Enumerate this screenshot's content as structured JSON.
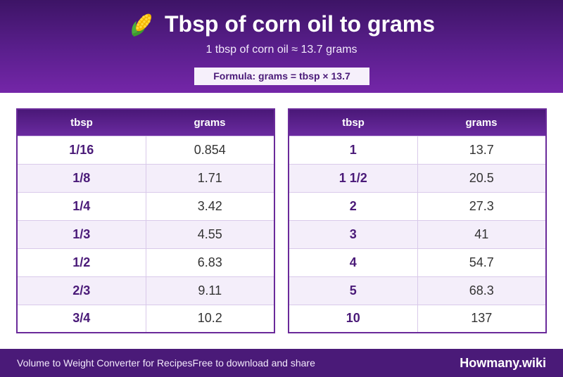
{
  "header": {
    "title": "Tbsp of corn oil to grams",
    "title_icon": "corn-icon",
    "subtitle": "1 tbsp of corn oil ≈ 13.7 grams",
    "formula": "Formula: grams = tbsp × 13.7"
  },
  "tables": {
    "left": {
      "headers": [
        "tbsp",
        "grams"
      ],
      "rows": [
        [
          "1/16",
          "0.854"
        ],
        [
          "1/8",
          "1.71"
        ],
        [
          "1/4",
          "3.42"
        ],
        [
          "1/3",
          "4.55"
        ],
        [
          "1/2",
          "6.83"
        ],
        [
          "2/3",
          "9.11"
        ],
        [
          "3/4",
          "10.2"
        ]
      ]
    },
    "right": {
      "headers": [
        "tbsp",
        "grams"
      ],
      "rows": [
        [
          "1",
          "13.7"
        ],
        [
          "1 1/2",
          "20.5"
        ],
        [
          "2",
          "27.3"
        ],
        [
          "3",
          "41"
        ],
        [
          "4",
          "54.7"
        ],
        [
          "5",
          "68.3"
        ],
        [
          "10",
          "137"
        ]
      ]
    }
  },
  "footer": {
    "left_text": "Volume to Weight Converter for RecipesFree to download and share",
    "brand": "Howmany.wiki"
  },
  "colors": {
    "header_dark": "#3d1466",
    "header_light": "#7426a8",
    "accent_text": "#4a1a78",
    "row_alt": "#f4eefa",
    "footer": "#4a1a78"
  }
}
